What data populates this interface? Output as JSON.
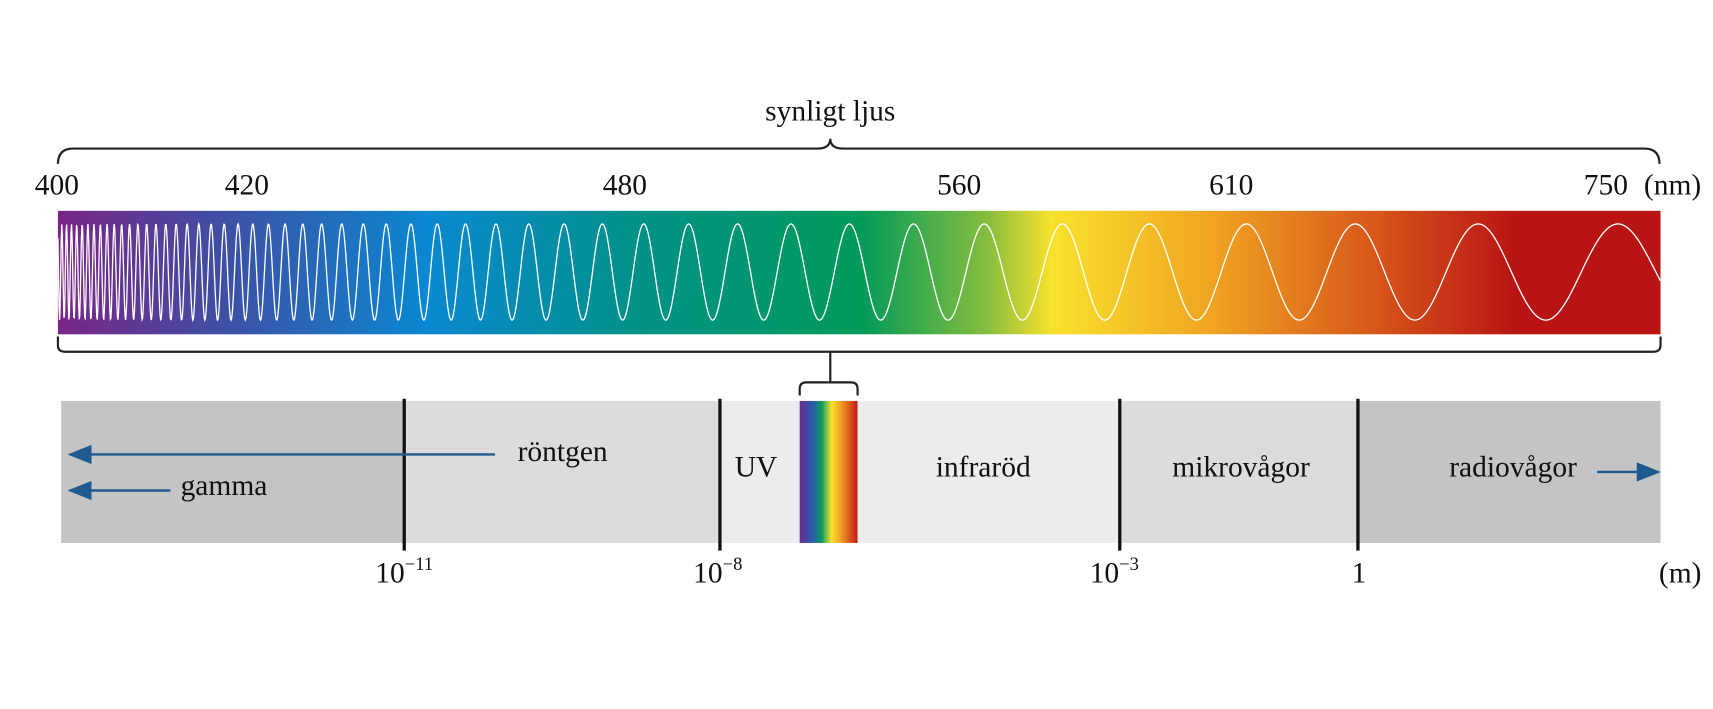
{
  "title": "synligt ljus",
  "nm_scale": {
    "labels": [
      "400",
      "420",
      "480",
      "560",
      "610",
      "750"
    ],
    "unit": "(nm)"
  },
  "regions": [
    "gamma",
    "röntgen",
    "UV",
    "infraröd",
    "mikrovågor",
    "radiovågor"
  ],
  "m_scale": {
    "labels": [
      {
        "base": "10",
        "exponent": "−11"
      },
      {
        "base": "10",
        "exponent": "−8"
      },
      {
        "base": "10",
        "exponent": "−3"
      },
      {
        "base": "1"
      }
    ],
    "unit": "(m)"
  }
}
